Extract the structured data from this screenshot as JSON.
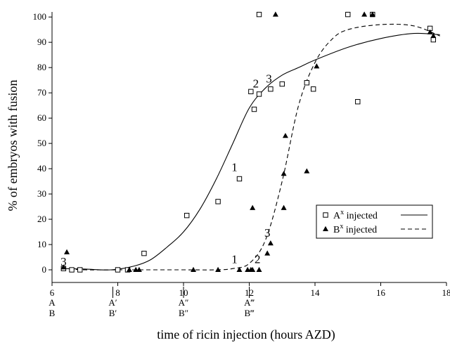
{
  "chart_data": {
    "type": "scatter",
    "xlabel": "time of ricin injection (hours AZD)",
    "ylabel": "% of embryos with fusion",
    "xlim": [
      6,
      18
    ],
    "ylim": [
      -5,
      102
    ],
    "x_ticks": [
      6,
      8,
      10,
      12,
      14,
      16,
      18
    ],
    "x_tick_labels": [
      "6",
      "8",
      "10",
      "12",
      "14",
      "16",
      "18"
    ],
    "y_ticks": [
      0,
      10,
      20,
      30,
      40,
      50,
      60,
      70,
      80,
      90,
      100
    ],
    "y_tick_labels": [
      "0",
      "10",
      "20",
      "30",
      "40",
      "50",
      "60",
      "70",
      "80",
      "90",
      "100"
    ],
    "grid": false,
    "legend_position": "lower-right",
    "stage_markers": [
      {
        "x": 6.0,
        "top": "A",
        "bottom": "B",
        "tick": false
      },
      {
        "x": 7.85,
        "top": "A′",
        "bottom": "B′",
        "tick": true
      },
      {
        "x": 10.0,
        "top": "A″",
        "bottom": "B″",
        "tick": true
      },
      {
        "x": 12.0,
        "top": "A‴",
        "bottom": "B‴",
        "tick": true
      }
    ],
    "series": [
      {
        "name": "A",
        "name_sup": "x",
        "name_suffix": " injected",
        "marker": "square",
        "line_style": "solid",
        "points": [
          [
            6.35,
            0.5
          ],
          [
            6.6,
            0
          ],
          [
            6.85,
            0
          ],
          [
            8.0,
            0
          ],
          [
            8.3,
            0
          ],
          [
            8.8,
            6.5
          ],
          [
            10.1,
            21.5
          ],
          [
            11.05,
            27
          ],
          [
            11.7,
            36
          ],
          [
            12.05,
            70.5
          ],
          [
            12.15,
            63.5
          ],
          [
            12.3,
            69.5
          ],
          [
            12.3,
            101
          ],
          [
            12.65,
            71.5
          ],
          [
            13.0,
            73.5
          ],
          [
            13.75,
            74
          ],
          [
            13.95,
            71.5
          ],
          [
            15.0,
            101
          ],
          [
            15.3,
            66.5
          ],
          [
            15.75,
            101
          ],
          [
            17.5,
            95.5
          ],
          [
            17.6,
            91
          ]
        ],
        "curve": [
          [
            6.3,
            0.5
          ],
          [
            7,
            0.3
          ],
          [
            7.8,
            0
          ],
          [
            8.5,
            1.5
          ],
          [
            9,
            4
          ],
          [
            9.5,
            9
          ],
          [
            10,
            15
          ],
          [
            10.5,
            24
          ],
          [
            11,
            36
          ],
          [
            11.5,
            50
          ],
          [
            12,
            64
          ],
          [
            12.5,
            72
          ],
          [
            13,
            77
          ],
          [
            13.5,
            80
          ],
          [
            14,
            83
          ],
          [
            15,
            88
          ],
          [
            16,
            91.5
          ],
          [
            17,
            93.5
          ],
          [
            17.8,
            93
          ]
        ]
      },
      {
        "name": "B",
        "name_sup": "x",
        "name_suffix": " injected",
        "marker": "triangle",
        "line_style": "dashed",
        "points": [
          [
            6.35,
            1
          ],
          [
            6.45,
            7
          ],
          [
            8.35,
            0
          ],
          [
            8.55,
            0
          ],
          [
            8.65,
            0
          ],
          [
            10.3,
            0
          ],
          [
            11.05,
            0
          ],
          [
            11.7,
            0
          ],
          [
            11.95,
            0
          ],
          [
            12.05,
            0
          ],
          [
            12.1,
            0
          ],
          [
            12.1,
            24.5
          ],
          [
            12.3,
            0
          ],
          [
            12.55,
            6.5
          ],
          [
            12.65,
            10.5
          ],
          [
            12.8,
            101
          ],
          [
            13.05,
            24.5
          ],
          [
            13.05,
            38
          ],
          [
            13.1,
            53
          ],
          [
            13.75,
            39
          ],
          [
            14.05,
            80.5
          ],
          [
            15.5,
            101
          ],
          [
            15.75,
            101
          ],
          [
            17.5,
            94
          ],
          [
            17.6,
            92.5
          ]
        ],
        "curve": [
          [
            6.3,
            0.5
          ],
          [
            7,
            0
          ],
          [
            8,
            0
          ],
          [
            10,
            0
          ],
          [
            11,
            0
          ],
          [
            11.5,
            0.5
          ],
          [
            12,
            2.5
          ],
          [
            12.5,
            12
          ],
          [
            13,
            35
          ],
          [
            13.5,
            65
          ],
          [
            14,
            82
          ],
          [
            14.5,
            91
          ],
          [
            15,
            95
          ],
          [
            16,
            97
          ],
          [
            17,
            96.5
          ],
          [
            17.8,
            92.5
          ]
        ]
      }
    ],
    "annotations": [
      {
        "text": "3",
        "x": 6.35,
        "y": 0.5
      },
      {
        "text": "1",
        "x": 11.55,
        "y": 38
      },
      {
        "text": "2",
        "x": 12.2,
        "y": 71
      },
      {
        "text": "3",
        "x": 12.6,
        "y": 73
      },
      {
        "text": "1",
        "x": 11.55,
        "y": 1.5
      },
      {
        "text": "2",
        "x": 12.25,
        "y": 1.5
      },
      {
        "text": "3",
        "x": 12.55,
        "y": 12
      }
    ]
  }
}
